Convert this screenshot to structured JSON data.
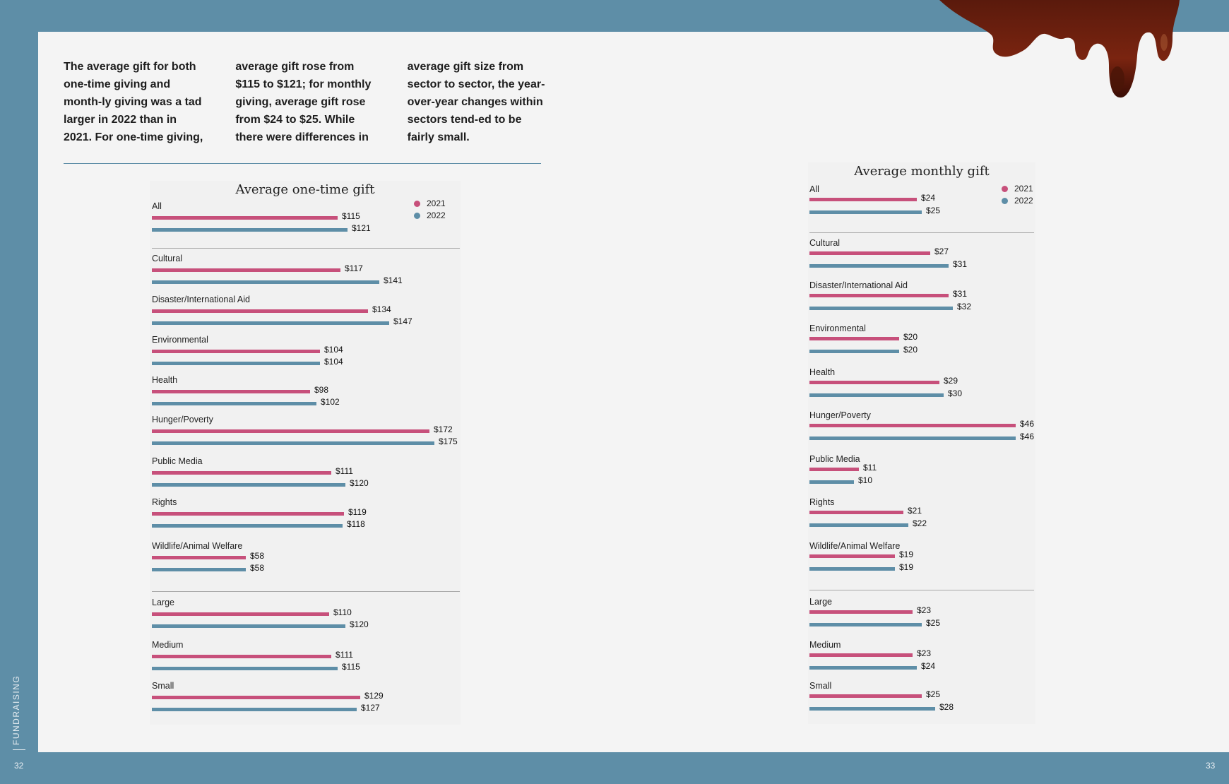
{
  "intro_text": "The average gift for both one-time giving and month-ly giving was a tad larger in 2022 than in 2021. For one-time giving, average gift rose from $115 to $121; for monthly giving, average gift rose from $24 to $25. While there were differences in average gift size from sector to sector, the year-over-year changes within sectors tend-ed to be fairly small.",
  "side_label": "FUNDRAISING",
  "page_left": "32",
  "page_right": "33",
  "colors": {
    "y2021": "#c7507b",
    "y2022": "#5e8ea7"
  },
  "chart_data": [
    {
      "type": "bar",
      "orientation": "horizontal",
      "title": "Average one-time gift",
      "legend": [
        "2021",
        "2022"
      ],
      "legend_position": "top-right",
      "value_prefix": "$",
      "xlim": [
        0,
        175
      ],
      "categories": [
        "All",
        "Cultural",
        "Disaster/International Aid",
        "Environmental",
        "Health",
        "Hunger/Poverty",
        "Public Media",
        "Rights",
        "Wildlife/Animal Welfare",
        "Large",
        "Medium",
        "Small"
      ],
      "labels": [
        [
          "$115",
          "$121"
        ],
        [
          "$117",
          "$141"
        ],
        [
          "$134",
          "$147"
        ],
        [
          "$104",
          "$104"
        ],
        [
          "$98",
          "$102"
        ],
        [
          "$172",
          "$175"
        ],
        [
          "$111",
          "$120"
        ],
        [
          "$119",
          "$118"
        ],
        [
          "$58",
          "$58"
        ],
        [
          "$110",
          "$120"
        ],
        [
          "$111",
          "$115"
        ],
        [
          "$129",
          "$127"
        ]
      ],
      "series": [
        {
          "name": "2021",
          "values": [
            115,
            117,
            134,
            104,
            98,
            172,
            111,
            119,
            58,
            110,
            111,
            129
          ]
        },
        {
          "name": "2022",
          "values": [
            121,
            141,
            147,
            104,
            102,
            175,
            120,
            118,
            58,
            120,
            115,
            127
          ]
        }
      ]
    },
    {
      "type": "bar",
      "orientation": "horizontal",
      "title": "Average monthly gift",
      "legend": [
        "2021",
        "2022"
      ],
      "legend_position": "top-right",
      "value_prefix": "$",
      "xlim": [
        0,
        46
      ],
      "categories": [
        "All",
        "Cultural",
        "Disaster/International Aid",
        "Environmental",
        "Health",
        "Hunger/Poverty",
        "Public Media",
        "Rights",
        "Wildlife/Animal Welfare",
        "Large",
        "Medium",
        "Small"
      ],
      "labels": [
        [
          "$24",
          "$25"
        ],
        [
          "$27",
          "$31"
        ],
        [
          "$31",
          "$32"
        ],
        [
          "$20",
          "$20"
        ],
        [
          "$29",
          "$30"
        ],
        [
          "$46",
          "$46"
        ],
        [
          "$11",
          "$10"
        ],
        [
          "$21",
          "$22"
        ],
        [
          "$19",
          "$19"
        ],
        [
          "$23",
          "$25"
        ],
        [
          "$23",
          "$24"
        ],
        [
          "$25",
          "$28"
        ]
      ],
      "series": [
        {
          "name": "2021",
          "values": [
            24,
            27,
            31,
            20,
            29,
            46,
            11,
            21,
            19,
            23,
            23,
            25
          ]
        },
        {
          "name": "2022",
          "values": [
            25,
            31,
            32,
            20,
            30,
            46,
            10,
            22,
            19,
            25,
            24,
            28
          ]
        }
      ]
    }
  ]
}
